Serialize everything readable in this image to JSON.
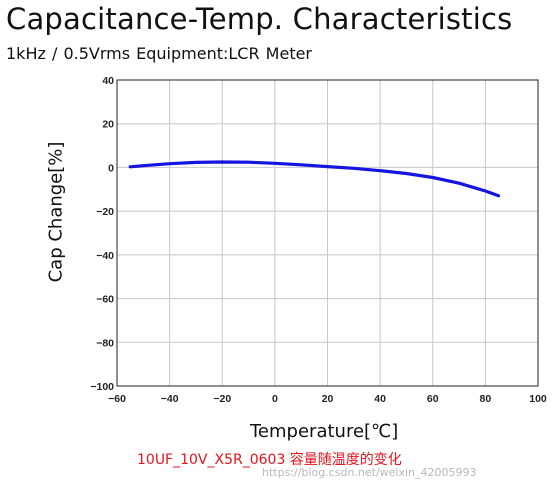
{
  "title": "Capacitance-Temp. Characteristics",
  "subtitle": "1kHz / 0.5Vrms    Equipment:LCR Meter",
  "caption": "10UF_10V_X5R_0603 容量随温度的变化",
  "watermark": "https://blog.csdn.net/weixin_42005993",
  "colors": {
    "series": "#1515e0",
    "caption": "#e8131b",
    "grid": "#c8c8c8"
  },
  "chart_data": {
    "type": "line",
    "title": "Capacitance-Temp. Characteristics",
    "xlabel": "Temperature[℃]",
    "ylabel": "Cap Change[%]",
    "xlim": [
      -60,
      100
    ],
    "ylim": [
      -100,
      40
    ],
    "xticks": [
      -60,
      -40,
      -20,
      0,
      20,
      40,
      60,
      80,
      100
    ],
    "yticks": [
      40,
      20,
      0,
      -20,
      -40,
      -60,
      -80,
      -100
    ],
    "xtick_labels": [
      "−60",
      "−40",
      "−20",
      "0",
      "20",
      "40",
      "60",
      "80",
      "100"
    ],
    "ytick_labels": [
      "40",
      "20",
      "0",
      "−20",
      "−40",
      "−60",
      "−80",
      "−100"
    ],
    "grid": true,
    "legend": "none",
    "series": [
      {
        "x": [
          -55,
          -50,
          -40,
          -30,
          -20,
          -10,
          0,
          10,
          20,
          30,
          40,
          50,
          60,
          70,
          80,
          85
        ],
        "y": [
          0.3,
          0.8,
          1.7,
          2.3,
          2.5,
          2.4,
          1.9,
          1.2,
          0.4,
          -0.4,
          -1.5,
          -2.8,
          -4.6,
          -7.2,
          -10.8,
          -13.0
        ]
      }
    ]
  }
}
